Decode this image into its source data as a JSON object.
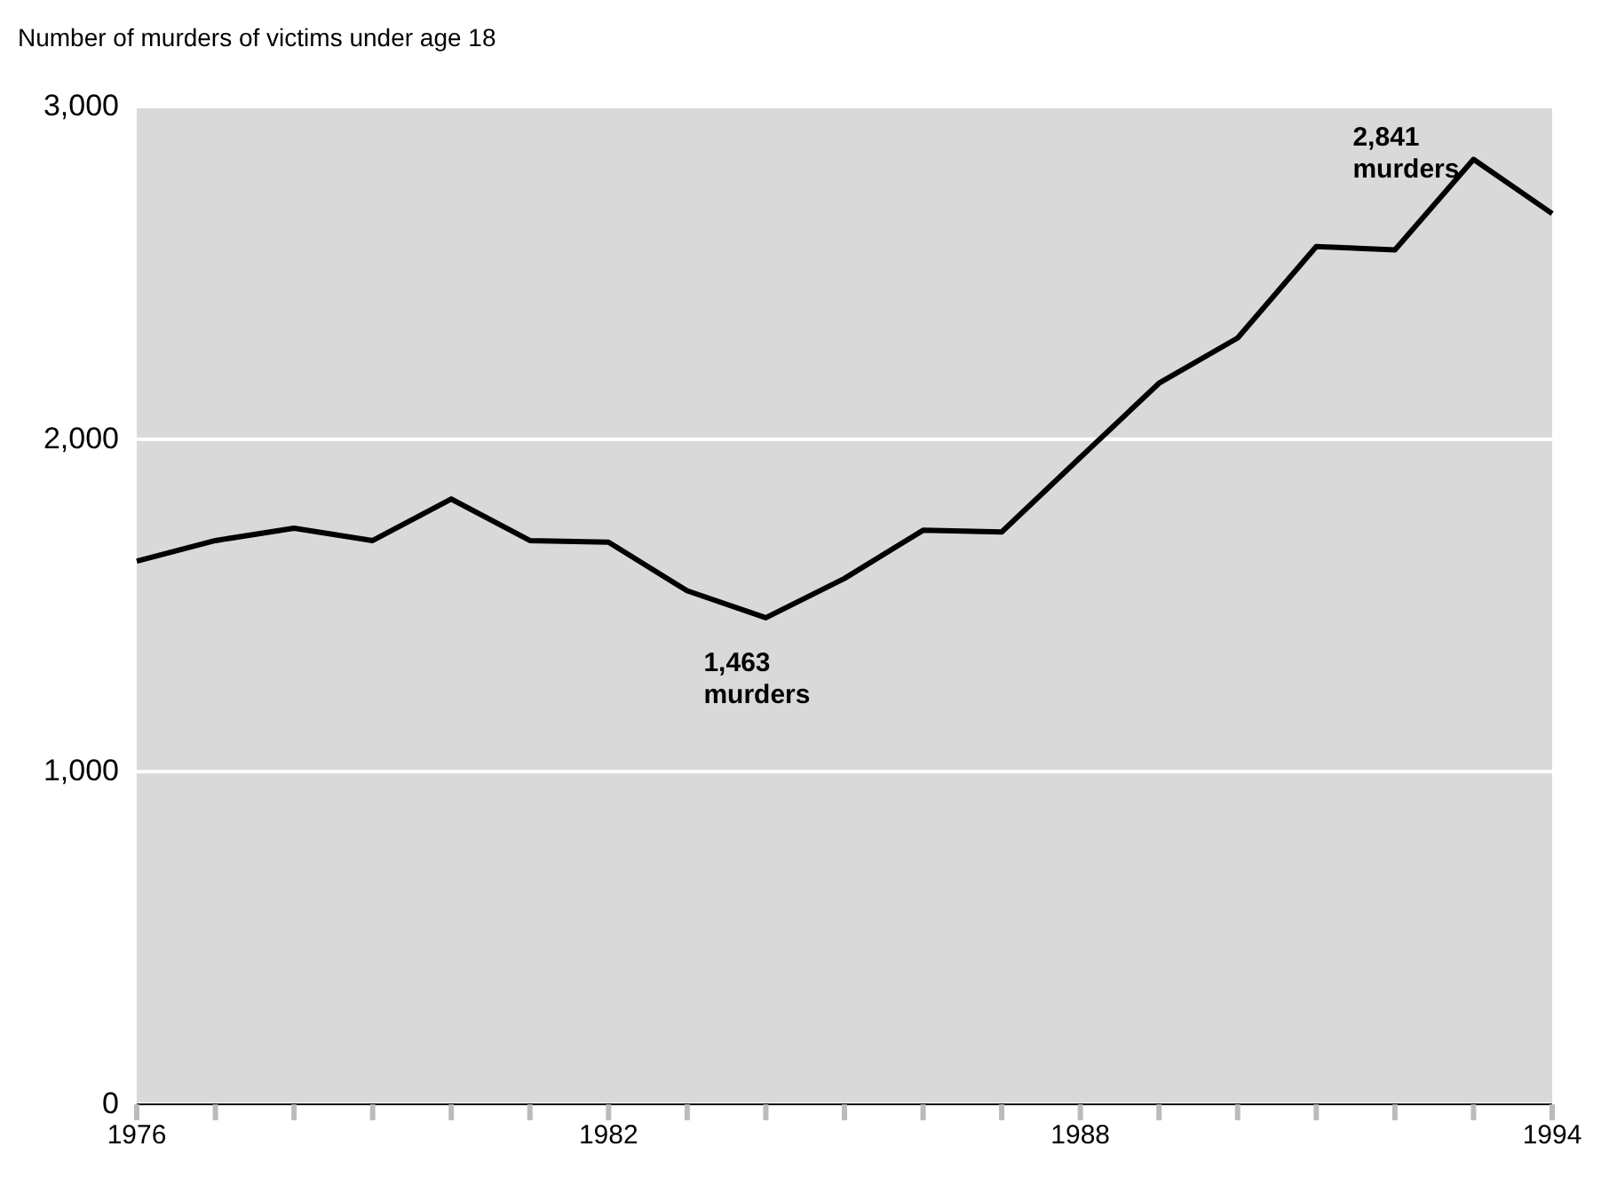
{
  "chart_data": {
    "type": "line",
    "ylabel": "Number of murders of victims under age 18",
    "x": [
      1976,
      1977,
      1978,
      1979,
      1980,
      1981,
      1982,
      1983,
      1984,
      1985,
      1986,
      1987,
      1988,
      1989,
      1990,
      1991,
      1992,
      1993,
      1994
    ],
    "series": [
      {
        "color": "#000000",
        "values": [
          1633,
          1695,
          1732,
          1695,
          1820,
          1695,
          1690,
          1544,
          1463,
          1581,
          1726,
          1721,
          1945,
          2168,
          2304,
          2579,
          2569,
          2841,
          2678
        ]
      }
    ],
    "xlim": [
      1976,
      1994
    ],
    "xticks": [
      1976,
      {
        "value": 1977,
        "label": null
      },
      {
        "value": 1978,
        "label": null
      },
      {
        "value": 1979,
        "label": null
      },
      {
        "value": 1980,
        "label": null
      },
      {
        "value": 1981,
        "label": null
      },
      1982,
      {
        "value": 1983,
        "label": null
      },
      {
        "value": 1984,
        "label": null
      },
      {
        "value": 1985,
        "label": null
      },
      {
        "value": 1986,
        "label": null
      },
      {
        "value": 1987,
        "label": null
      },
      1988,
      {
        "value": 1989,
        "label": null
      },
      {
        "value": 1990,
        "label": null
      },
      {
        "value": 1991,
        "label": null
      },
      {
        "value": 1992,
        "label": null
      },
      {
        "value": 1993,
        "label": null
      },
      1994
    ],
    "ylim": [
      0,
      3000
    ],
    "yticks": [
      {
        "value": 0,
        "label": "0"
      },
      {
        "value": 1000,
        "label": "1,000"
      },
      {
        "value": 2000,
        "label": "2,000"
      },
      {
        "value": 3000,
        "label": "3,000"
      }
    ],
    "grid": "y",
    "marker": "none",
    "line_style": "solid",
    "annotations": [
      {
        "text": "1,463\nmurders",
        "x": 1984,
        "y": 1463
      },
      {
        "text": "2,841\nmurders",
        "x": 1993,
        "y": 2841
      }
    ]
  }
}
